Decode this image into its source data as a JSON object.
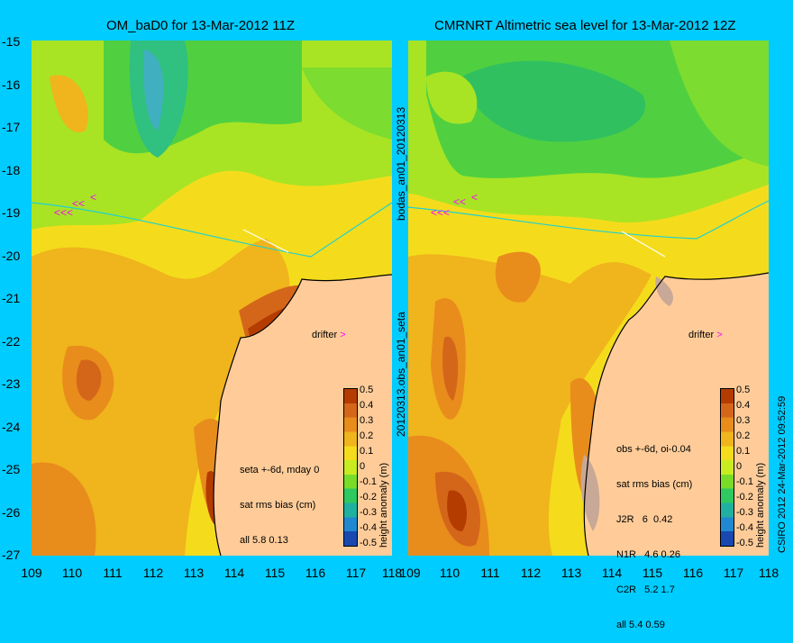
{
  "left_title": "OM_baD0 for 13-Mar-2012 11Z",
  "right_title": "CMRNRT Altimetric sea level  for 13-Mar-2012 12Z",
  "y_ticks": [
    "-15",
    "-16",
    "-17",
    "-18",
    "-19",
    "-20",
    "-21",
    "-22",
    "-23",
    "-24",
    "-25",
    "-26",
    "-27"
  ],
  "x_ticks_left": [
    "109",
    "110",
    "111",
    "112",
    "113",
    "114",
    "115",
    "116",
    "117",
    "118"
  ],
  "x_ticks_right": [
    "109",
    "110",
    "111",
    "112",
    "113",
    "114",
    "115",
    "116",
    "117",
    "118"
  ],
  "mid_label_top": "bodas_an01_20120313",
  "mid_label_bottom": "20120313.obs_an01_seta",
  "drifter_label": "drifter",
  "left_stats": [
    "seta +-6d, mday 0",
    "sat rms bias (cm)",
    "all 5.8 0.13"
  ],
  "right_stats": [
    "obs +-6d, oi-0.04",
    "sat rms bias (cm)",
    "J2R   6  0.42",
    "N1R   4.6 0.26",
    "C2R   5.2 1.7",
    "all 5.4 0.59"
  ],
  "colorbar": {
    "ticks": [
      "0.5",
      "0.4",
      "0.3",
      "0.2",
      "0.1",
      "0",
      "-0.1",
      "-0.2",
      "-0.3",
      "-0.4",
      "-0.5"
    ],
    "label": "height anomaly (m)",
    "colors": [
      "#b43c00",
      "#d4661a",
      "#e88c1c",
      "#f0b41c",
      "#f4dc1c",
      "#c8ec20",
      "#78dc28",
      "#30c860",
      "#20b0a0",
      "#2088d0",
      "#1848b0"
    ]
  },
  "credit": "CSIRO 2012  24-Mar-2012 09:52:59",
  "colors": {
    "land": "#ffcc99",
    "background": "#00ccff",
    "contour_warm": "#f0b41c",
    "contour_green": "#40c840",
    "drifter": "#ff00ff"
  }
}
